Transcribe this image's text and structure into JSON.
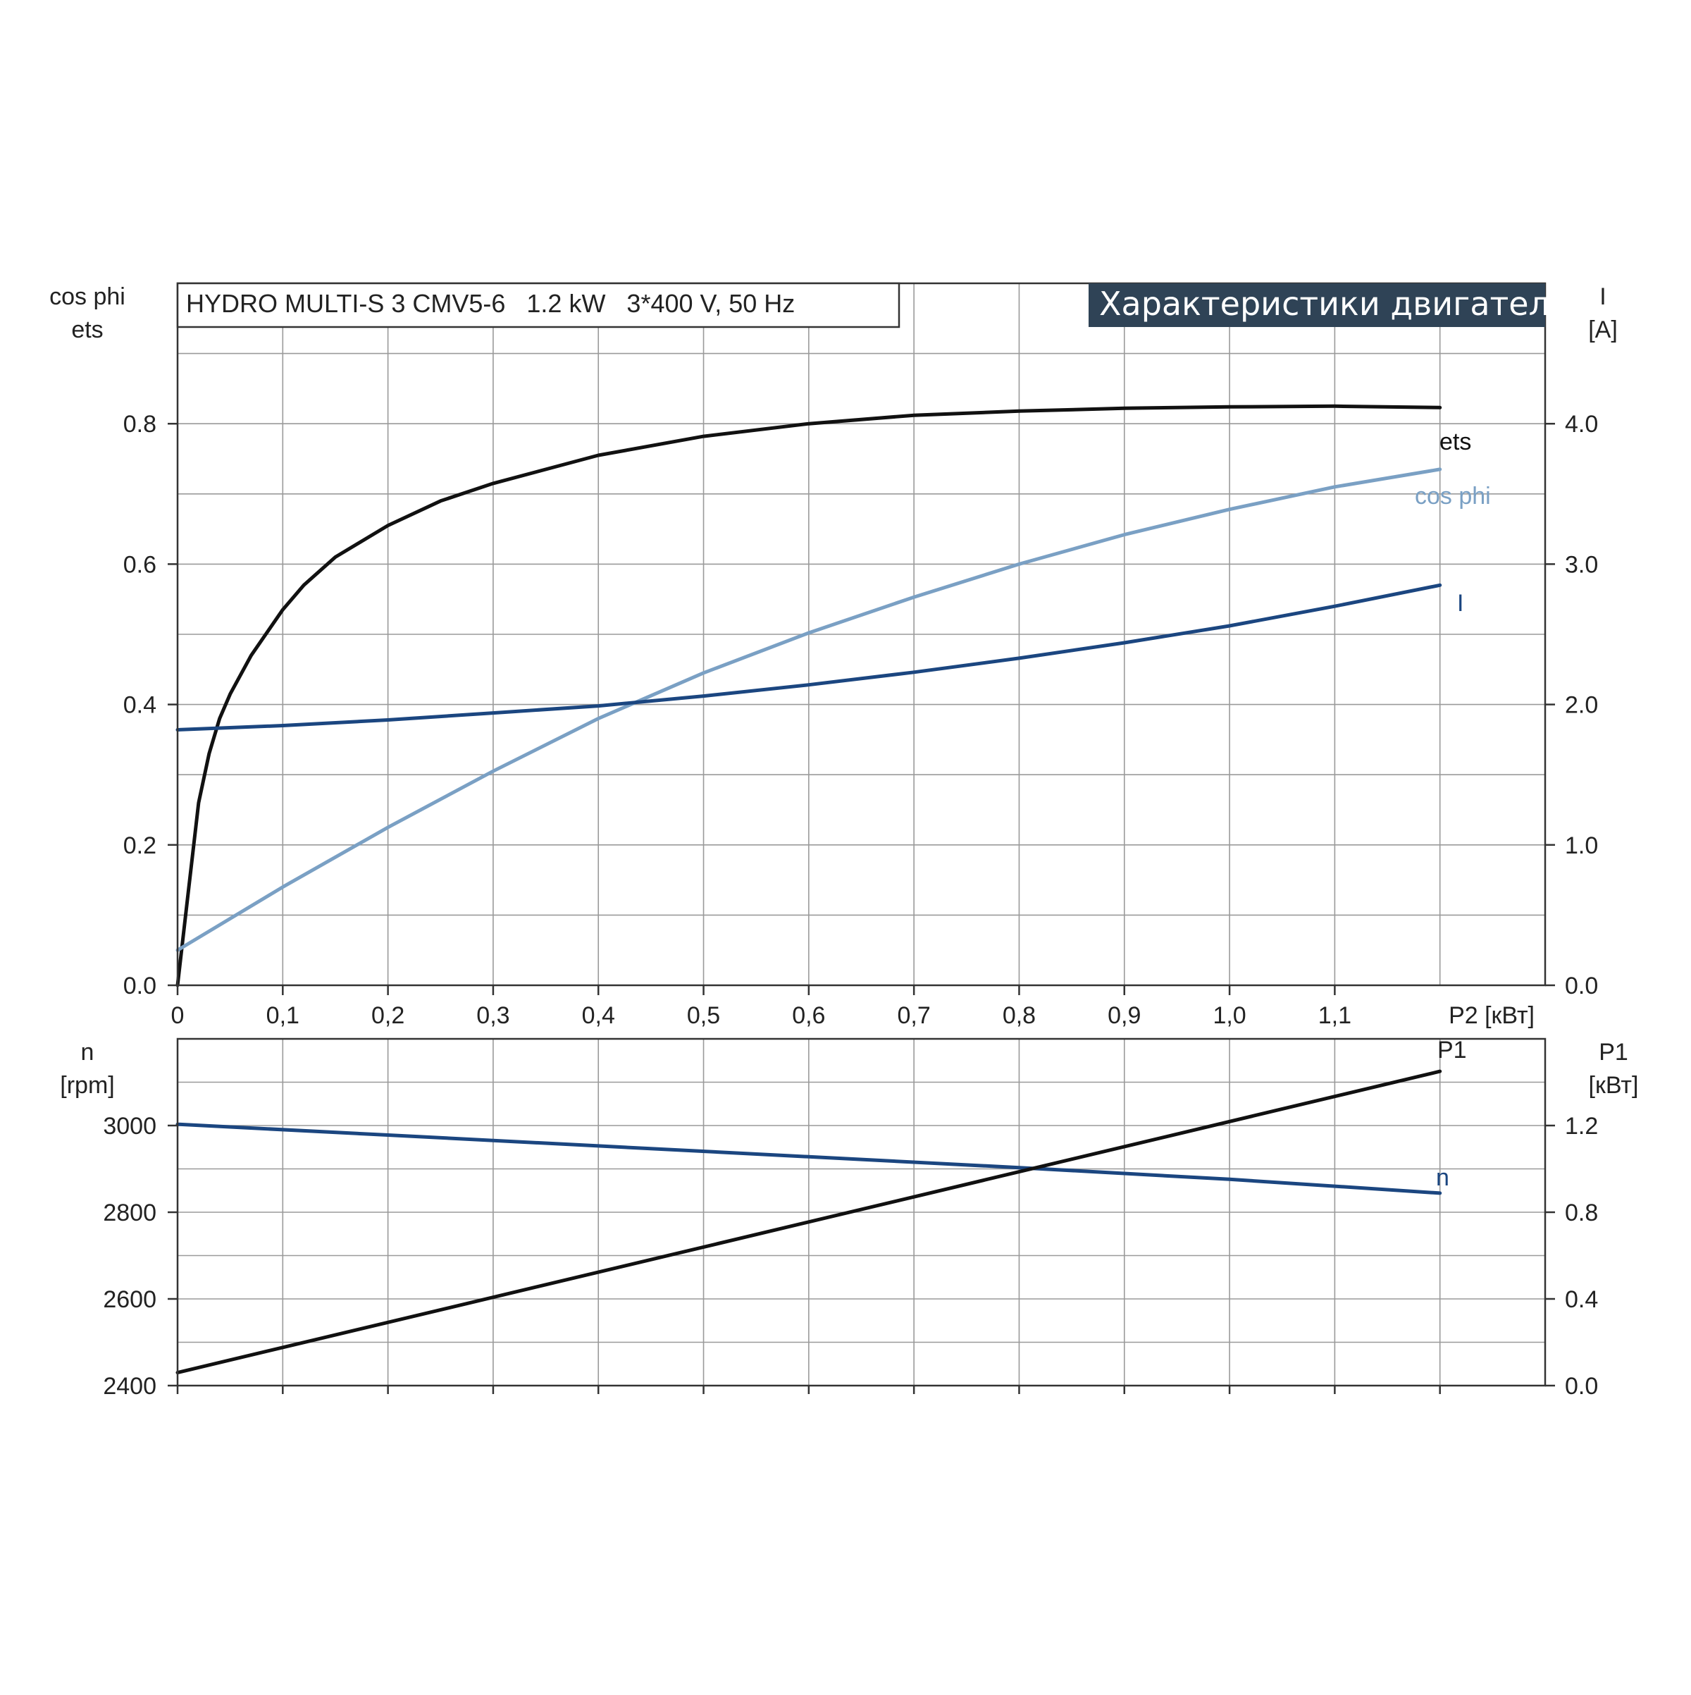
{
  "info_box": "HYDRO MULTI-S 3 CMV5-6   1.2 kW   3*400 V, 50 Hz",
  "banner": "Характеристики двигателя",
  "colors": {
    "ets": "#111111",
    "cos_phi": "#7aa0c4",
    "I": "#1b4680",
    "n": "#1b4680",
    "P1": "#111111",
    "banner_bg": "#2f4356",
    "grid": "#9a9a9a"
  },
  "chart_data": [
    {
      "type": "line",
      "xlabel": "P2 [кВт]",
      "x_ticks": [
        "0",
        "0,1",
        "0,2",
        "0,3",
        "0,4",
        "0,5",
        "0,6",
        "0,7",
        "0,8",
        "0,9",
        "1,0",
        "1,1"
      ],
      "xlim": [
        0,
        1.3
      ],
      "y_left_label": [
        "cos phi",
        "ets"
      ],
      "y_left_ticks": [
        "0.0",
        "0.2",
        "0.4",
        "0.6",
        "0.8"
      ],
      "y_left_lim": [
        0,
        1.0
      ],
      "y_right_label": [
        "I",
        "[A]"
      ],
      "y_right_ticks": [
        "0.0",
        "1.0",
        "2.0",
        "3.0",
        "4.0"
      ],
      "y_right_lim": [
        0,
        5.0
      ],
      "grid": true,
      "series": [
        {
          "name": "ets",
          "axis": "left",
          "x": [
            0,
            0.01,
            0.02,
            0.03,
            0.04,
            0.05,
            0.07,
            0.1,
            0.12,
            0.15,
            0.2,
            0.25,
            0.3,
            0.4,
            0.5,
            0.6,
            0.7,
            0.8,
            0.9,
            1.0,
            1.1,
            1.2
          ],
          "y": [
            0,
            0.13,
            0.26,
            0.33,
            0.38,
            0.415,
            0.47,
            0.535,
            0.57,
            0.61,
            0.655,
            0.69,
            0.715,
            0.755,
            0.782,
            0.8,
            0.812,
            0.818,
            0.822,
            0.824,
            0.825,
            0.823
          ]
        },
        {
          "name": "cos phi",
          "axis": "left",
          "x": [
            0,
            0.1,
            0.2,
            0.3,
            0.4,
            0.5,
            0.6,
            0.7,
            0.8,
            0.9,
            1.0,
            1.1,
            1.2
          ],
          "y": [
            0.05,
            0.14,
            0.225,
            0.305,
            0.38,
            0.445,
            0.502,
            0.553,
            0.6,
            0.642,
            0.678,
            0.71,
            0.735
          ]
        },
        {
          "name": "I",
          "axis": "right",
          "x": [
            0,
            0.1,
            0.2,
            0.3,
            0.4,
            0.5,
            0.6,
            0.7,
            0.8,
            0.9,
            1.0,
            1.1,
            1.2
          ],
          "y": [
            1.82,
            1.85,
            1.89,
            1.94,
            1.99,
            2.06,
            2.14,
            2.23,
            2.33,
            2.44,
            2.56,
            2.7,
            2.85
          ]
        }
      ]
    },
    {
      "type": "line",
      "xlim": [
        0,
        1.3
      ],
      "y_left_label": [
        "n",
        "[rpm]"
      ],
      "y_left_ticks": [
        "2400",
        "2600",
        "2800",
        "3000"
      ],
      "y_left_lim": [
        2400,
        3200
      ],
      "y_right_label": [
        "P1",
        "[кВт]"
      ],
      "y_right_ticks": [
        "0.0",
        "0.4",
        "0.8",
        "1.2"
      ],
      "y_right_lim": [
        0,
        1.6
      ],
      "grid": true,
      "series": [
        {
          "name": "n",
          "axis": "left",
          "x": [
            0,
            0.2,
            0.4,
            0.6,
            0.8,
            1.0,
            1.2
          ],
          "y": [
            3003,
            2978,
            2953,
            2928,
            2903,
            2876,
            2844
          ]
        },
        {
          "name": "P1",
          "axis": "right",
          "x": [
            0,
            1.2
          ],
          "y": [
            0.06,
            1.45
          ]
        }
      ]
    }
  ]
}
